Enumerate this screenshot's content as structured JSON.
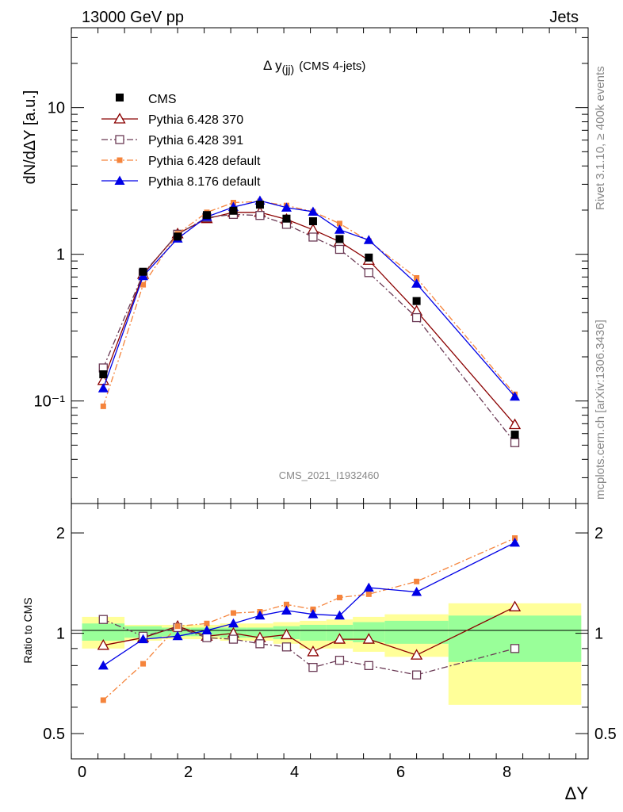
{
  "header": {
    "beam": "13000 GeV pp",
    "process": "Jets",
    "plot_title_main": "Δ y",
    "plot_title_sub": "(jj)",
    "plot_title_rest": "(CMS 4-jets)",
    "side_rivet": "Rivet 3.1.10, ≥ 400k events",
    "side_mcplots": "mcplots.cern.ch [arXiv:1306.3436]",
    "analysis_id": "CMS_2021_I1932460"
  },
  "colors": {
    "cms": "#000000",
    "py370": "#8b0000",
    "py391": "#6b3a55",
    "pydefault": "#f5843c",
    "py8": "#0000e6",
    "band_inner": "#99ff99",
    "band_outer": "#ffff99"
  },
  "chart_data": [
    {
      "type": "line",
      "title": "Δ y(jj) (CMS 4-jets)",
      "xlabel": "ΔY",
      "ylabel": "dN/dΔY [a.u.]",
      "yscale": "log",
      "xlim": [
        -0.25,
        9.6
      ],
      "ylim": [
        0.02,
        35
      ],
      "ytick_values": [
        0.1,
        1,
        10
      ],
      "ytick_labels": [
        "10⁻¹",
        "1",
        "10"
      ],
      "xtick_values": [
        0,
        2,
        4,
        6,
        8
      ],
      "xtick_labels": [
        "0",
        "2",
        "4",
        "6",
        "8"
      ],
      "legend_position": "top-left",
      "x": [
        0.4,
        1.15,
        1.8,
        2.35,
        2.85,
        3.35,
        3.85,
        4.35,
        4.85,
        5.4,
        6.3,
        8.15
      ],
      "series": [
        {
          "name": "CMS",
          "key": "cms",
          "marker": "square-filled",
          "line": "none",
          "values": [
            0.152,
            0.76,
            1.32,
            1.85,
            1.98,
            2.18,
            1.75,
            1.68,
            1.27,
            0.95,
            0.48,
            0.059
          ]
        },
        {
          "name": "Pythia 6.428 370",
          "key": "py370",
          "marker": "triangle-open",
          "line": "solid",
          "values": [
            0.138,
            0.73,
            1.38,
            1.75,
            1.93,
            1.93,
            1.73,
            1.47,
            1.22,
            0.91,
            0.41,
            0.069
          ]
        },
        {
          "name": "Pythia 6.428 391",
          "key": "py391",
          "marker": "square-open",
          "line": "dashdot",
          "values": [
            0.168,
            0.74,
            1.37,
            1.78,
            1.87,
            1.84,
            1.6,
            1.31,
            1.08,
            0.75,
            0.37,
            0.052
          ]
        },
        {
          "name": "Pythia 6.428 default",
          "key": "pydefault",
          "marker": "square-small",
          "line": "dashdot",
          "values": [
            0.092,
            0.62,
            1.38,
            1.93,
            2.25,
            2.29,
            2.15,
            1.95,
            1.62,
            1.23,
            0.69,
            0.111
          ]
        },
        {
          "name": "Pythia 8.176 default",
          "key": "py8",
          "marker": "triangle-filled",
          "line": "solid",
          "values": [
            0.122,
            0.71,
            1.28,
            1.8,
            2.1,
            2.32,
            2.08,
            1.95,
            1.47,
            1.25,
            0.63,
            0.107
          ]
        }
      ]
    },
    {
      "type": "line",
      "title": "",
      "xlabel": "ΔY",
      "ylabel": "Ratio to CMS",
      "yscale": "log",
      "ylim": [
        0.42,
        2.45
      ],
      "ytick_values": [
        0.5,
        1,
        2
      ],
      "ytick_labels": [
        "0.5",
        "1",
        "2"
      ],
      "reference_line": 1,
      "bin_edges": [
        0,
        0.8,
        1.5,
        2.05,
        2.6,
        3.1,
        3.6,
        4.1,
        4.6,
        5.1,
        5.7,
        6.9,
        9.4
      ],
      "band_inner": [
        [
          0.95,
          1.07
        ],
        [
          0.97,
          1.05
        ],
        [
          0.98,
          1.04
        ],
        [
          0.98,
          1.04
        ],
        [
          0.97,
          1.04
        ],
        [
          0.97,
          1.04
        ],
        [
          0.96,
          1.05
        ],
        [
          0.95,
          1.06
        ],
        [
          0.95,
          1.06
        ],
        [
          0.94,
          1.08
        ],
        [
          0.93,
          1.09
        ],
        [
          0.82,
          1.13
        ]
      ],
      "band_outer": [
        [
          0.9,
          1.12
        ],
        [
          0.95,
          1.06
        ],
        [
          0.96,
          1.06
        ],
        [
          0.96,
          1.06
        ],
        [
          0.95,
          1.07
        ],
        [
          0.95,
          1.07
        ],
        [
          0.93,
          1.08
        ],
        [
          0.9,
          1.09
        ],
        [
          0.9,
          1.1
        ],
        [
          0.88,
          1.12
        ],
        [
          0.85,
          1.14
        ],
        [
          0.61,
          1.23
        ]
      ],
      "x": [
        0.4,
        1.15,
        1.8,
        2.35,
        2.85,
        3.35,
        3.85,
        4.35,
        4.85,
        5.4,
        6.3,
        8.15
      ],
      "series": [
        {
          "name": "Pythia 6.428 370",
          "key": "py370",
          "values": [
            0.92,
            0.97,
            1.05,
            0.98,
            1.0,
            0.97,
            0.99,
            0.88,
            0.96,
            0.96,
            0.86,
            1.2
          ]
        },
        {
          "name": "Pythia 6.428 391",
          "key": "py391",
          "values": [
            1.1,
            0.98,
            1.04,
            0.97,
            0.96,
            0.93,
            0.91,
            0.79,
            0.83,
            0.8,
            0.75,
            0.9
          ]
        },
        {
          "name": "Pythia 6.428 default",
          "key": "pydefault",
          "values": [
            0.63,
            0.81,
            1.05,
            1.07,
            1.15,
            1.16,
            1.22,
            1.18,
            1.28,
            1.31,
            1.43,
            1.93
          ]
        },
        {
          "name": "Pythia 8.176 default",
          "key": "py8",
          "values": [
            0.8,
            0.96,
            0.98,
            1.02,
            1.07,
            1.13,
            1.17,
            1.14,
            1.13,
            1.37,
            1.33,
            1.87
          ]
        }
      ]
    }
  ]
}
